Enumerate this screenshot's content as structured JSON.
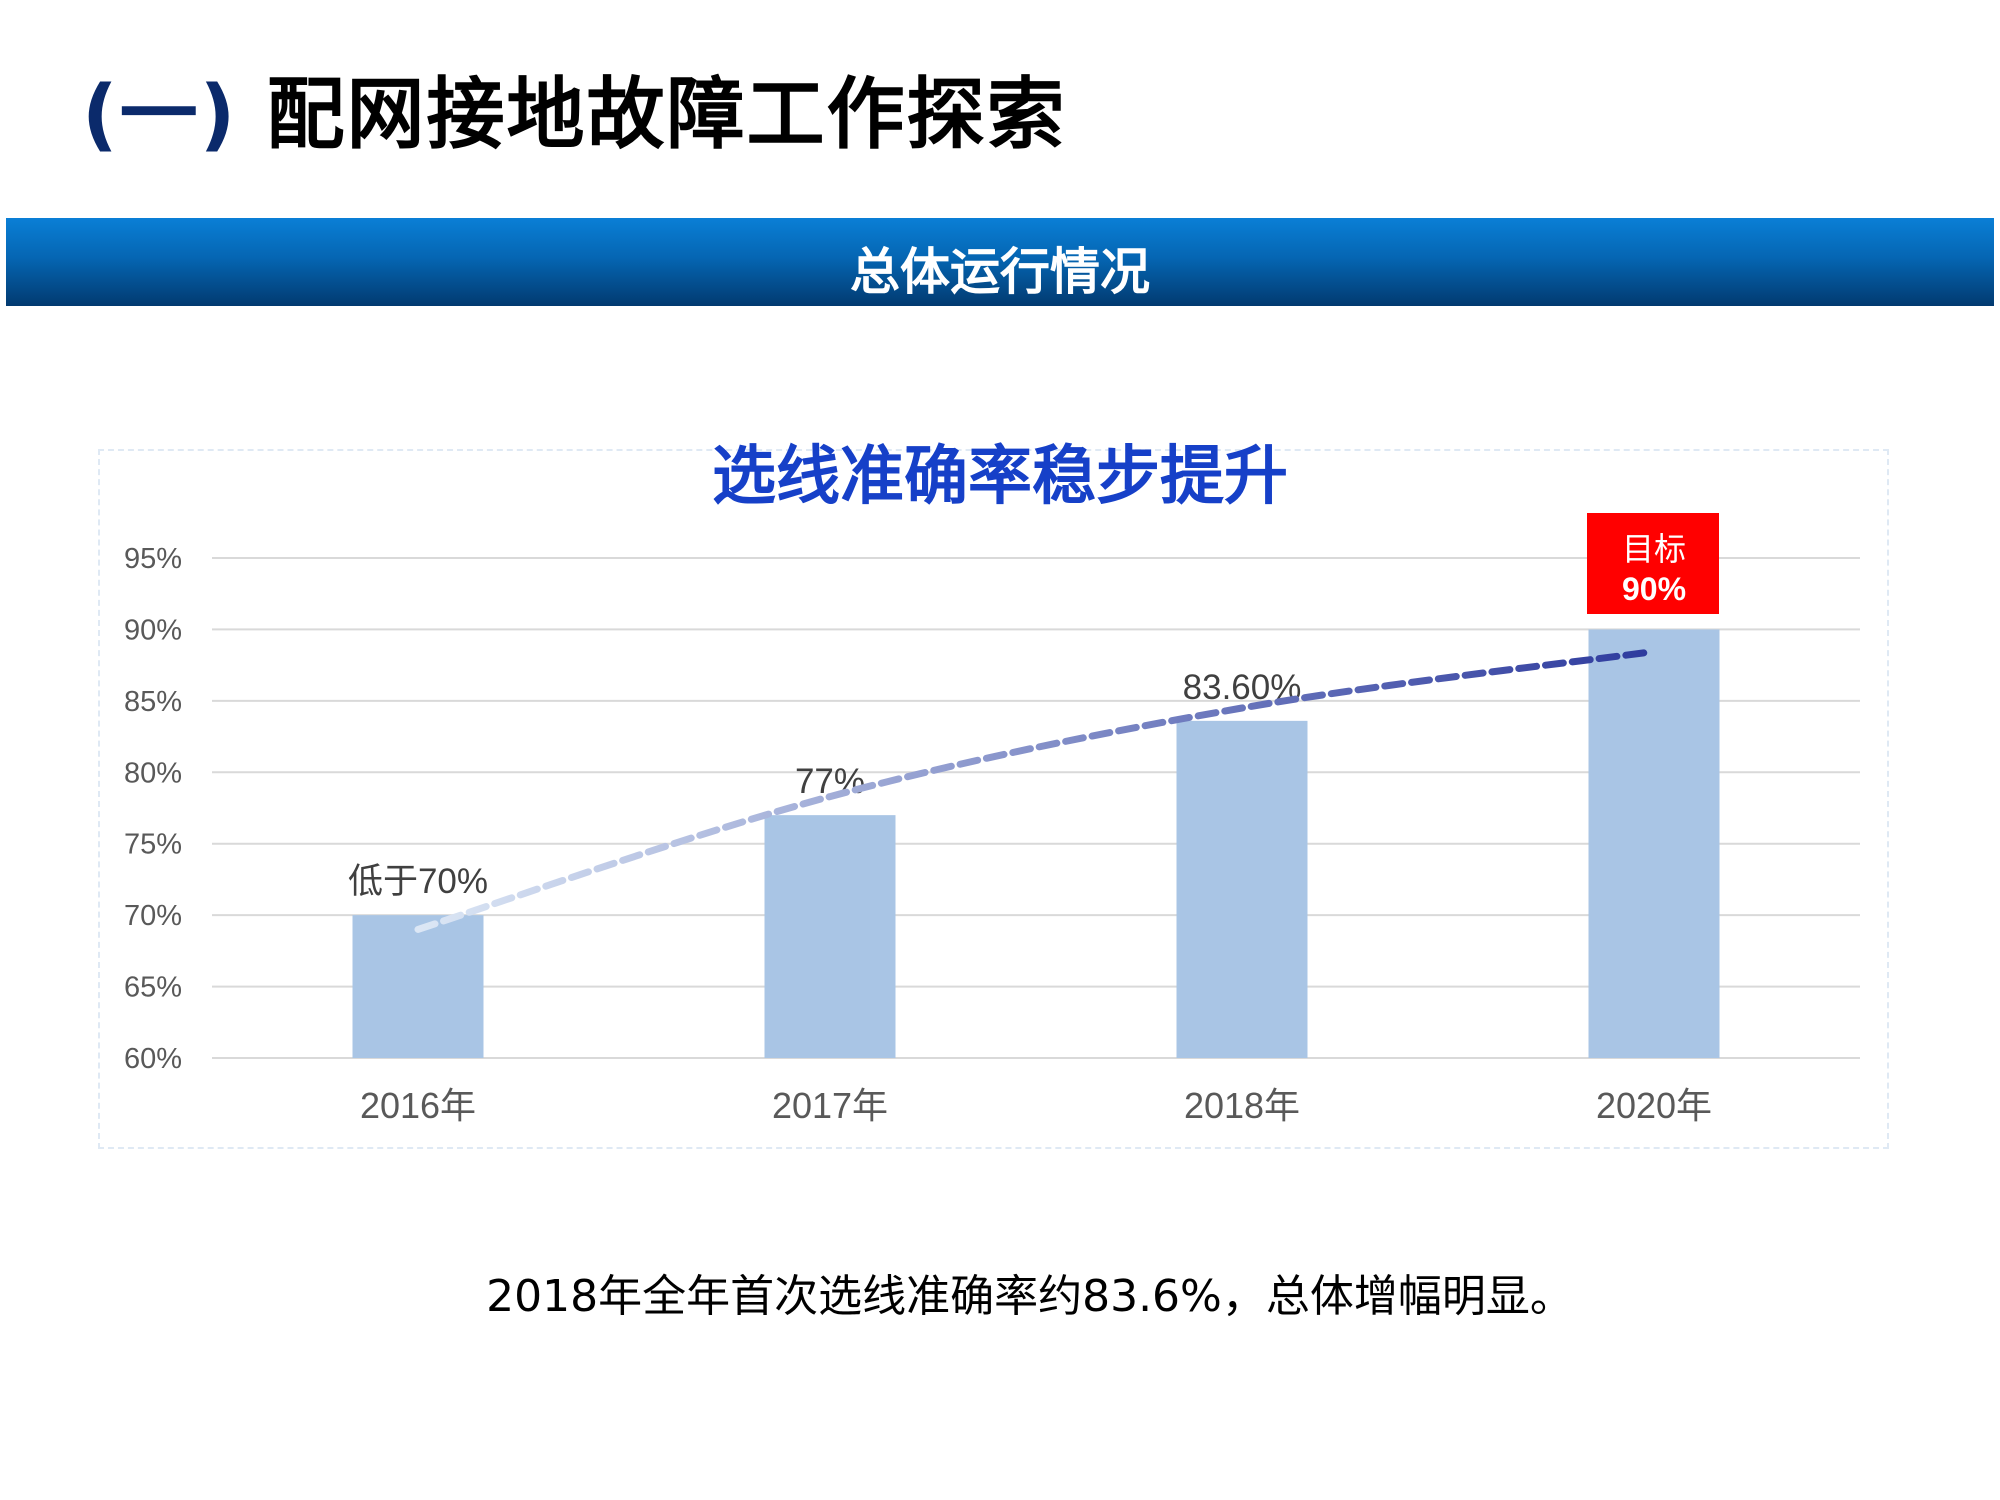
{
  "header": {
    "title_num": "(一)",
    "title": "配网接地故障工作探索"
  },
  "banner": {
    "text": "总体运行情况"
  },
  "chart_data": {
    "type": "bar",
    "title": "选线准确率稳步提升",
    "categories": [
      "2016年",
      "2017年",
      "2018年",
      "2020年"
    ],
    "values": [
      70,
      77,
      83.6,
      90
    ],
    "data_labels": [
      "低于70%",
      "77%",
      "83.60%",
      ""
    ],
    "ylim": [
      60,
      95
    ],
    "yticks": [
      "60%",
      "65%",
      "70%",
      "75%",
      "80%",
      "85%",
      "90%",
      "95%"
    ],
    "ytick_values": [
      60,
      65,
      70,
      75,
      80,
      85,
      90,
      95
    ],
    "grid": true,
    "bar_color": "#a9c5e5",
    "trendline": {
      "style": "dashed",
      "values": [
        69,
        78.3,
        84.5,
        88.4
      ],
      "color_start": "#dce7f5",
      "color_end": "#2e3b9e"
    },
    "target_callout": {
      "line1": "目标",
      "line2": "90%",
      "color": "#ff0000"
    }
  },
  "footer": {
    "note": "2018年全年首次选线准确率约83.6%，总体增幅明显。"
  }
}
